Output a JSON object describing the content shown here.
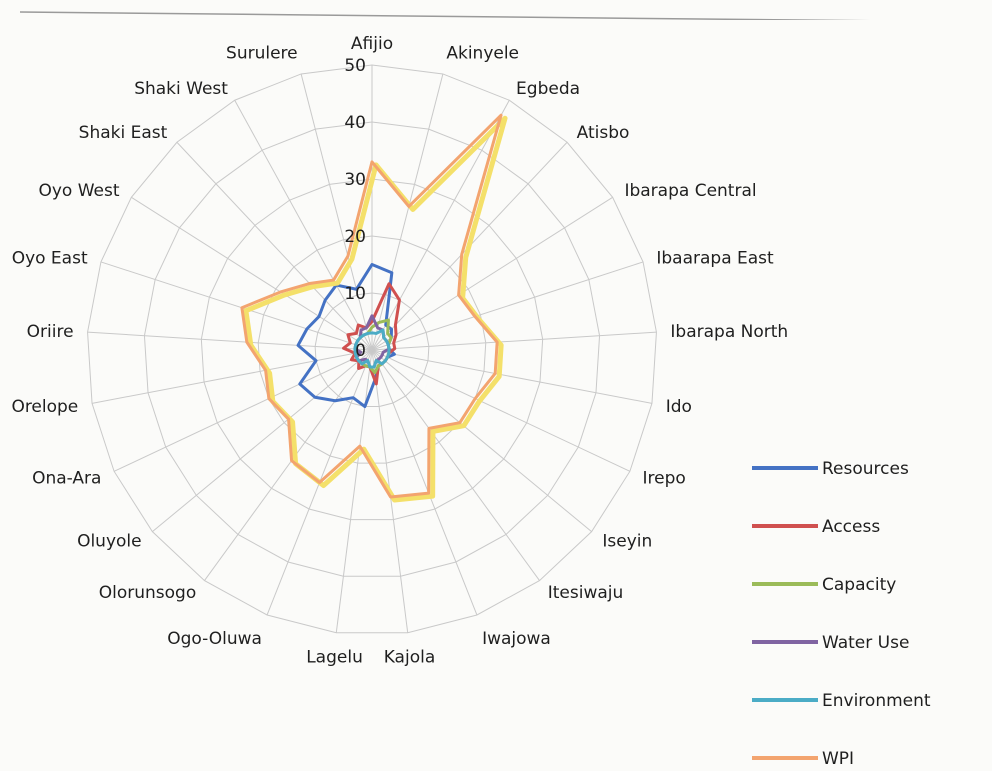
{
  "chart_data": {
    "type": "radar",
    "title": "",
    "rlim": [
      0,
      50
    ],
    "ticks": [
      0,
      10,
      20,
      30,
      40,
      50
    ],
    "grid": true,
    "legend_position": "right",
    "categories": [
      "Afijio",
      "Akinyele",
      "Egbeda",
      "Atisbo",
      "Ibarapa Central",
      "Ibaarapa East",
      "Ibarapa North",
      "Ido",
      "Irepo",
      "Iseyin",
      "Itesiwaju",
      "Iwajowa",
      "Kajola",
      "Lagelu",
      "Ogo-Oluwa",
      "Olorunsogo",
      "Oluyole",
      "Ona-Ara",
      "Orelope",
      "Oriire",
      "Oyo East",
      "Oyo West",
      "Shaki East",
      "Shaki West",
      "Surulere"
    ],
    "series": [
      {
        "name": "Resources",
        "color": "#4472c4",
        "values": [
          15,
          14,
          5,
          5,
          4,
          3,
          3,
          4,
          3,
          3,
          3,
          3,
          5,
          10,
          9,
          11,
          13,
          14,
          10,
          13,
          12,
          11,
          12,
          13,
          11
        ]
      },
      {
        "name": "Access",
        "color": "#d0504f",
        "values": [
          5,
          12,
          10,
          6,
          5,
          4,
          4,
          3,
          3,
          3,
          3,
          3,
          6,
          3,
          3,
          4,
          3,
          4,
          3,
          5,
          4,
          5,
          4,
          5,
          4
        ]
      },
      {
        "name": "Capacity",
        "color": "#9bbb59",
        "values": [
          4,
          5,
          6,
          4,
          4,
          3,
          3,
          3,
          3,
          3,
          3,
          3,
          4,
          3,
          3,
          3,
          3,
          3,
          3,
          3,
          3,
          3,
          3,
          3,
          3
        ]
      },
      {
        "name": "Water Use",
        "color": "#8064a2",
        "values": [
          6,
          4,
          4,
          3,
          3,
          3,
          3,
          2,
          2,
          2,
          2,
          2,
          3,
          3,
          2,
          2,
          3,
          3,
          2,
          3,
          3,
          3,
          3,
          4,
          4
        ]
      },
      {
        "name": "Environment",
        "color": "#4bacc6",
        "values": [
          3,
          3,
          4,
          3,
          3,
          3,
          3,
          3,
          3,
          3,
          3,
          2,
          3,
          3,
          2,
          3,
          3,
          3,
          3,
          3,
          3,
          3,
          3,
          3,
          3
        ]
      },
      {
        "name": "WPI",
        "color": "#f3a46f",
        "values": [
          33,
          26,
          47,
          23,
          18,
          19,
          22,
          22,
          20,
          20,
          17,
          27,
          26,
          17,
          25,
          24,
          19,
          20,
          19,
          22,
          24,
          19,
          16,
          14,
          17
        ]
      }
    ]
  }
}
